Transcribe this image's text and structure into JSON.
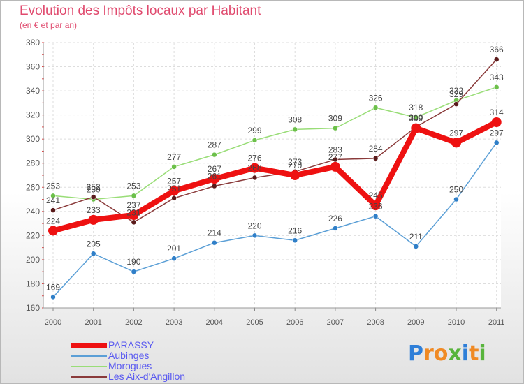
{
  "header": {
    "title": "Evolution des Impôts locaux par Habitant",
    "subtitle": "(en € et par an)"
  },
  "logo": {
    "text": "Proxiti",
    "colors": [
      "#2f7fd8",
      "#f08a24",
      "#f08a24",
      "#58b43c",
      "#2f7fd8",
      "#f08a24",
      "#58b43c"
    ]
  },
  "chart_data": {
    "type": "line",
    "title": "Evolution des Impôts locaux par Habitant",
    "subtitle": "(en € et par an)",
    "xlabel": "",
    "ylabel": "",
    "ylim": [
      160,
      380
    ],
    "yticks": [
      160,
      180,
      200,
      220,
      240,
      260,
      280,
      300,
      320,
      340,
      360,
      380
    ],
    "grid": true,
    "legend_position": "bottom-left",
    "categories": [
      "2000",
      "2001",
      "2002",
      "2003",
      "2004",
      "2005",
      "2006",
      "2007",
      "2008",
      "2009",
      "2010",
      "2011"
    ],
    "series": [
      {
        "name": "PARASSY",
        "color": "#ee1111",
        "values": [
          224,
          233,
          237,
          257,
          267,
          276,
          270,
          277,
          245,
          309,
          297,
          314
        ]
      },
      {
        "name": "Aubinges",
        "color": "#5b9fd6",
        "marker": "#2f7fc8",
        "values": [
          169,
          205,
          190,
          201,
          214,
          220,
          216,
          226,
          236,
          211,
          250,
          297
        ]
      },
      {
        "name": "Morogues",
        "color": "#99dd77",
        "marker": "#6cc04a",
        "values": [
          253,
          250,
          253,
          277,
          287,
          299,
          308,
          309,
          326,
          318,
          332,
          343
        ]
      },
      {
        "name": "Les Aix-d'Angillon",
        "color": "#8a3a3a",
        "marker": "#5a1a1a",
        "values": [
          241,
          252,
          231,
          251,
          261,
          268,
          273,
          283,
          284,
          310,
          329,
          366
        ]
      }
    ]
  }
}
